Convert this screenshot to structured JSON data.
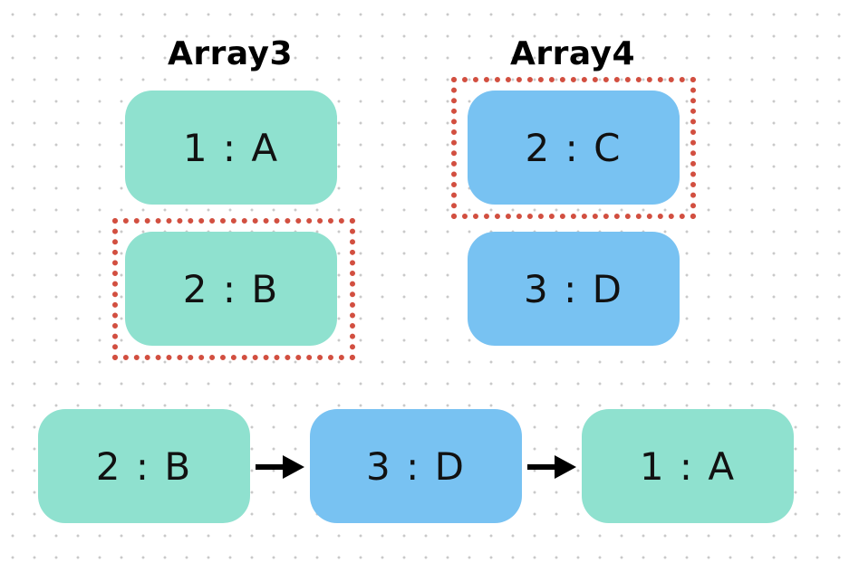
{
  "columns": [
    {
      "heading": "Array3",
      "items": [
        {
          "label": "1 : A",
          "color": "#8fe1cf"
        },
        {
          "label": "2 : B",
          "color": "#8fe1cf",
          "highlighted": true
        }
      ]
    },
    {
      "heading": "Array4",
      "items": [
        {
          "label": "2 : C",
          "color": "#78c2f2",
          "highlighted": true
        },
        {
          "label": "3 : D",
          "color": "#78c2f2"
        }
      ]
    }
  ],
  "result": [
    {
      "label": "2 : B",
      "color": "#8fe1cf"
    },
    {
      "label": "3 : D",
      "color": "#78c2f2"
    },
    {
      "label": "1 : A",
      "color": "#8fe1cf"
    }
  ],
  "colors": {
    "green_node": "#8fe1cf",
    "blue_node": "#78c2f2",
    "highlight_border": "#d24f40",
    "arrow": "#000000"
  }
}
